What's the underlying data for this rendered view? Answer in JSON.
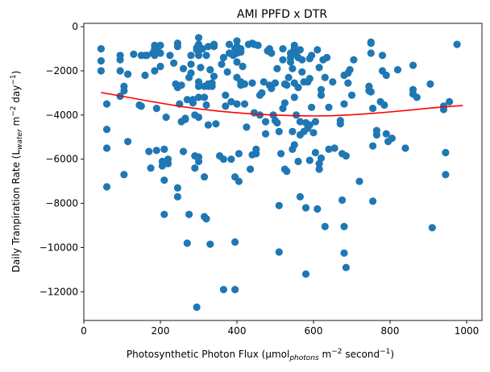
{
  "chart_data": {
    "type": "scatter",
    "title": "AMI PPFD x DTR",
    "xlabel": {
      "prefix": "Photosynthetic Photon Flux (μmol",
      "sub": "photons",
      "mid": " m",
      "sup1": "−2",
      "mid2": " second",
      "sup2": "−1",
      "suffix": ")"
    },
    "ylabel": {
      "prefix": "Daily Tranpiration Rate (L",
      "sub": "water",
      "mid": " m",
      "sup1": "−2",
      "mid2": " day",
      "sup2": "−1",
      "suffix": ")"
    },
    "xlim": [
      0,
      1040
    ],
    "ylim": [
      -13300,
      150
    ],
    "xticks": [
      0,
      200,
      400,
      600,
      800,
      1000
    ],
    "yticks": [
      0,
      -2000,
      -4000,
      -6000,
      -8000,
      -10000,
      -12000
    ],
    "xtick_labels": [
      "0",
      "200",
      "400",
      "600",
      "800",
      "1000"
    ],
    "ytick_labels": [
      "0",
      "−2000",
      "−4000",
      "−6000",
      "−8000",
      "−10000",
      "−12000"
    ],
    "grid": false,
    "point_color": "#1f77b4",
    "fit_color": "#ff0000",
    "fit_curve": {
      "x": [
        45,
        100,
        150,
        200,
        250,
        300,
        350,
        400,
        450,
        500,
        550,
        600,
        650,
        700,
        750,
        800,
        850,
        900,
        950,
        990
      ],
      "y": [
        -2980,
        -3150,
        -3310,
        -3460,
        -3600,
        -3720,
        -3820,
        -3900,
        -3960,
        -4000,
        -4030,
        -4040,
        -4030,
        -3990,
        -3930,
        -3860,
        -3780,
        -3690,
        -3620,
        -3570
      ]
    },
    "points": [
      [
        45,
        -1000
      ],
      [
        45,
        -1550
      ],
      [
        45,
        -2000
      ],
      [
        60,
        -4650
      ],
      [
        60,
        -5500
      ],
      [
        60,
        -7250
      ],
      [
        60,
        -3500
      ],
      [
        95,
        -1300
      ],
      [
        95,
        -1500
      ],
      [
        95,
        -2000
      ],
      [
        95,
        -3150
      ],
      [
        105,
        -2700
      ],
      [
        105,
        -2900
      ],
      [
        105,
        -6700
      ],
      [
        115,
        -5200
      ],
      [
        115,
        -2150
      ],
      [
        130,
        -1250
      ],
      [
        145,
        -3550
      ],
      [
        150,
        -1300
      ],
      [
        150,
        -3600
      ],
      [
        160,
        -2200
      ],
      [
        160,
        -1300
      ],
      [
        165,
        -1300
      ],
      [
        170,
        -5650
      ],
      [
        175,
        -6400
      ],
      [
        180,
        -1200
      ],
      [
        185,
        -1000
      ],
      [
        185,
        -850
      ],
      [
        185,
        -1300
      ],
      [
        185,
        -2000
      ],
      [
        190,
        -1100
      ],
      [
        190,
        -3700
      ],
      [
        190,
        -5600
      ],
      [
        195,
        -900
      ],
      [
        200,
        -850
      ],
      [
        200,
        -1200
      ],
      [
        200,
        -1800
      ],
      [
        205,
        -6100
      ],
      [
        205,
        -6300
      ],
      [
        210,
        -5550
      ],
      [
        210,
        -6950
      ],
      [
        210,
        -8500
      ],
      [
        215,
        -4100
      ],
      [
        220,
        -6200
      ],
      [
        220,
        -6000
      ],
      [
        225,
        -1300
      ],
      [
        235,
        -1650
      ],
      [
        240,
        -2600
      ],
      [
        245,
        -900
      ],
      [
        245,
        -750
      ],
      [
        245,
        -2750
      ],
      [
        245,
        -7300
      ],
      [
        245,
        -7700
      ],
      [
        250,
        -3500
      ],
      [
        255,
        -2650
      ],
      [
        255,
        -4300
      ],
      [
        260,
        -1900
      ],
      [
        260,
        -5650
      ],
      [
        265,
        -4200
      ],
      [
        265,
        -4150
      ],
      [
        270,
        -3300
      ],
      [
        270,
        -9800
      ],
      [
        275,
        -2300
      ],
      [
        275,
        -8500
      ],
      [
        280,
        -1300
      ],
      [
        280,
        -1700
      ],
      [
        280,
        -2100
      ],
      [
        285,
        -3300
      ],
      [
        285,
        -3450
      ],
      [
        290,
        -6400
      ],
      [
        290,
        -4000
      ],
      [
        290,
        -5850
      ],
      [
        295,
        -12700
      ],
      [
        295,
        -1050
      ],
      [
        295,
        -950
      ],
      [
        300,
        -500
      ],
      [
        300,
        -800
      ],
      [
        300,
        -1100
      ],
      [
        300,
        -1300
      ],
      [
        300,
        -2500
      ],
      [
        300,
        -2700
      ],
      [
        300,
        -3200
      ],
      [
        300,
        -4100
      ],
      [
        300,
        -5900
      ],
      [
        300,
        -6100
      ],
      [
        305,
        -1850
      ],
      [
        310,
        -1000
      ],
      [
        315,
        -2700
      ],
      [
        315,
        -3200
      ],
      [
        315,
        -6800
      ],
      [
        315,
        -8600
      ],
      [
        320,
        -1300
      ],
      [
        320,
        -3550
      ],
      [
        320,
        -8700
      ],
      [
        325,
        -2600
      ],
      [
        325,
        -2700
      ],
      [
        325,
        -900
      ],
      [
        325,
        -4450
      ],
      [
        330,
        -9850
      ],
      [
        330,
        -1950
      ],
      [
        335,
        -2700
      ],
      [
        335,
        -2550
      ],
      [
        340,
        -900
      ],
      [
        340,
        -800
      ],
      [
        340,
        -2250
      ],
      [
        345,
        -4400
      ],
      [
        355,
        -5850
      ],
      [
        360,
        -1700
      ],
      [
        365,
        -1400
      ],
      [
        365,
        -11900
      ],
      [
        365,
        -6000
      ],
      [
        370,
        -3100
      ],
      [
        370,
        -3600
      ],
      [
        375,
        -2050
      ],
      [
        380,
        -1200
      ],
      [
        380,
        -800
      ],
      [
        385,
        -3400
      ],
      [
        385,
        -6000
      ],
      [
        390,
        -1300
      ],
      [
        395,
        -1000
      ],
      [
        395,
        -9750
      ],
      [
        395,
        -6800
      ],
      [
        395,
        -11900
      ],
      [
        400,
        -1600
      ],
      [
        400,
        -1200
      ],
      [
        400,
        -2300
      ],
      [
        400,
        -650
      ],
      [
        400,
        -900
      ],
      [
        400,
        -3500
      ],
      [
        405,
        -5750
      ],
      [
        405,
        -7000
      ],
      [
        410,
        -1150
      ],
      [
        410,
        -2500
      ],
      [
        410,
        -2650
      ],
      [
        410,
        -1000
      ],
      [
        415,
        -1800
      ],
      [
        420,
        -2600
      ],
      [
        420,
        -3500
      ],
      [
        425,
        -4550
      ],
      [
        430,
        -800
      ],
      [
        435,
        -6450
      ],
      [
        440,
        -5800
      ],
      [
        440,
        -2550
      ],
      [
        440,
        -750
      ],
      [
        445,
        -3900
      ],
      [
        445,
        -800
      ],
      [
        450,
        -5750
      ],
      [
        450,
        -5550
      ],
      [
        455,
        -850
      ],
      [
        460,
        -3100
      ],
      [
        460,
        -4000
      ],
      [
        465,
        -3000
      ],
      [
        470,
        -2500
      ],
      [
        475,
        -4300
      ],
      [
        475,
        -4850
      ],
      [
        480,
        -1100
      ],
      [
        485,
        -1000
      ],
      [
        485,
        -2650
      ],
      [
        490,
        -1200
      ],
      [
        490,
        -2800
      ],
      [
        495,
        -4000
      ],
      [
        500,
        -2550
      ],
      [
        500,
        -4250
      ],
      [
        505,
        -1900
      ],
      [
        505,
        -4350
      ],
      [
        510,
        -4750
      ],
      [
        510,
        -8100
      ],
      [
        510,
        -10200
      ],
      [
        515,
        -5750
      ],
      [
        520,
        -1000
      ],
      [
        520,
        -1500
      ],
      [
        520,
        -3700
      ],
      [
        525,
        -2600
      ],
      [
        525,
        -3450
      ],
      [
        525,
        -6450
      ],
      [
        530,
        -2650
      ],
      [
        530,
        -6550
      ],
      [
        535,
        -2300
      ],
      [
        540,
        -1200
      ],
      [
        540,
        -1400
      ],
      [
        540,
        -1600
      ],
      [
        545,
        -1900
      ],
      [
        545,
        -4750
      ],
      [
        545,
        -5550
      ],
      [
        550,
        -850
      ],
      [
        550,
        -1000
      ],
      [
        550,
        -2550
      ],
      [
        550,
        -3200
      ],
      [
        550,
        -5350
      ],
      [
        555,
        -1250
      ],
      [
        555,
        -4000
      ],
      [
        560,
        -1400
      ],
      [
        560,
        -2750
      ],
      [
        560,
        -6100
      ],
      [
        565,
        -1050
      ],
      [
        565,
        -4300
      ],
      [
        565,
        -7700
      ],
      [
        565,
        -4900
      ],
      [
        570,
        -1500
      ],
      [
        570,
        -2050
      ],
      [
        575,
        -2500
      ],
      [
        575,
        -4750
      ],
      [
        580,
        -4350
      ],
      [
        580,
        -8200
      ],
      [
        580,
        -11200
      ],
      [
        585,
        -2500
      ],
      [
        585,
        -4600
      ],
      [
        590,
        -1450
      ],
      [
        590,
        -2350
      ],
      [
        590,
        -6050
      ],
      [
        590,
        -4450
      ],
      [
        595,
        -1300
      ],
      [
        595,
        -3650
      ],
      [
        600,
        -4800
      ],
      [
        605,
        -4300
      ],
      [
        605,
        -5700
      ],
      [
        610,
        -1050
      ],
      [
        610,
        -8250
      ],
      [
        615,
        -1850
      ],
      [
        615,
        -6200
      ],
      [
        615,
        -6450
      ],
      [
        620,
        -2850
      ],
      [
        620,
        -5950
      ],
      [
        620,
        -3100
      ],
      [
        625,
        -1500
      ],
      [
        630,
        -9050
      ],
      [
        630,
        -2300
      ],
      [
        635,
        -1400
      ],
      [
        640,
        -3650
      ],
      [
        640,
        -5550
      ],
      [
        650,
        -2500
      ],
      [
        655,
        -5500
      ],
      [
        670,
        -4250
      ],
      [
        670,
        -4400
      ],
      [
        675,
        -7850
      ],
      [
        675,
        -5750
      ],
      [
        680,
        -3500
      ],
      [
        680,
        -9050
      ],
      [
        680,
        -10250
      ],
      [
        680,
        -2200
      ],
      [
        685,
        -10900
      ],
      [
        685,
        -5850
      ],
      [
        690,
        -2100
      ],
      [
        690,
        -2550
      ],
      [
        695,
        -1950
      ],
      [
        700,
        -3100
      ],
      [
        705,
        -1500
      ],
      [
        720,
        -7000
      ],
      [
        745,
        -2700
      ],
      [
        745,
        -2900
      ],
      [
        750,
        -1200
      ],
      [
        750,
        -700
      ],
      [
        750,
        -750
      ],
      [
        750,
        -2950
      ],
      [
        755,
        -5400
      ],
      [
        755,
        -3700
      ],
      [
        755,
        -7900
      ],
      [
        765,
        -4700
      ],
      [
        765,
        -4900
      ],
      [
        775,
        -3400
      ],
      [
        780,
        -2000
      ],
      [
        780,
        -1300
      ],
      [
        785,
        -3550
      ],
      [
        790,
        -2200
      ],
      [
        790,
        -4850
      ],
      [
        795,
        -5200
      ],
      [
        805,
        -5050
      ],
      [
        820,
        -1950
      ],
      [
        840,
        -5500
      ],
      [
        860,
        -2850
      ],
      [
        860,
        -3050
      ],
      [
        860,
        -1750
      ],
      [
        870,
        -3200
      ],
      [
        905,
        -2600
      ],
      [
        910,
        -9100
      ],
      [
        940,
        -3600
      ],
      [
        940,
        -3750
      ],
      [
        945,
        -6700
      ],
      [
        945,
        -5700
      ],
      [
        955,
        -3400
      ],
      [
        975,
        -800
      ]
    ]
  }
}
